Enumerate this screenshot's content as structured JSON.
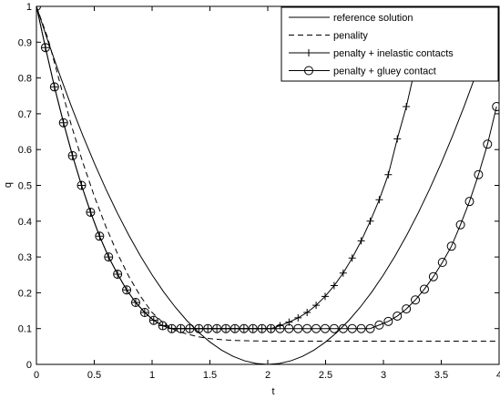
{
  "chart_data": {
    "type": "line",
    "title": "",
    "xlabel": "t",
    "ylabel": "q",
    "xlim": [
      0,
      4
    ],
    "ylim": [
      0,
      1
    ],
    "xticks": [
      0,
      0.5,
      1,
      1.5,
      2,
      2.5,
      3,
      3.5,
      4
    ],
    "xtick_labels": [
      "0",
      "0.5",
      "1",
      "1.5",
      "2",
      "2.5",
      "3",
      "3.5",
      "4"
    ],
    "yticks": [
      0,
      0.1,
      0.2,
      0.3,
      0.4,
      0.5,
      0.6,
      0.7,
      0.8,
      0.9,
      1
    ],
    "ytick_labels": [
      "0",
      "0.1",
      "0.2",
      "0.3",
      "0.4",
      "0.5",
      "0.6",
      "0.7",
      "0.8",
      "0.9",
      "1"
    ],
    "grid": false,
    "legend_position": "top-right",
    "series": [
      {
        "name": "reference solution",
        "style": "solid",
        "marker": "none",
        "x": [
          0,
          0.1,
          0.2,
          0.3,
          0.4,
          0.5,
          0.6,
          0.7,
          0.8,
          0.9,
          1.0,
          1.1,
          1.2,
          1.3,
          1.4,
          1.5,
          1.6,
          1.7,
          1.8,
          1.9,
          2.0,
          2.1,
          2.2,
          2.3,
          2.4,
          2.5,
          2.6,
          2.7,
          2.8,
          2.9,
          3.0,
          3.1,
          3.2,
          3.3,
          3.4,
          3.5,
          3.6,
          3.7,
          3.8,
          3.9,
          4.0
        ],
        "y": [
          1.0,
          0.9025,
          0.81,
          0.7225,
          0.64,
          0.5625,
          0.49,
          0.4225,
          0.36,
          0.3025,
          0.25,
          0.2025,
          0.16,
          0.1225,
          0.09,
          0.0625,
          0.04,
          0.0225,
          0.01,
          0.0025,
          0.0,
          0.0025,
          0.01,
          0.0225,
          0.04,
          0.0625,
          0.09,
          0.1225,
          0.16,
          0.2025,
          0.25,
          0.3025,
          0.36,
          0.4225,
          0.49,
          0.5625,
          0.64,
          0.7225,
          0.81,
          0.9025,
          1.0
        ]
      },
      {
        "name": "penality",
        "style": "dashed",
        "marker": "none",
        "x": [
          0,
          0.1,
          0.2,
          0.3,
          0.4,
          0.5,
          0.6,
          0.7,
          0.8,
          0.9,
          1.0,
          1.1,
          1.2,
          1.3,
          1.4,
          1.5,
          1.6,
          1.7,
          1.8,
          2.0,
          2.5,
          3.0,
          3.5,
          4.0
        ],
        "y": [
          1.0,
          0.91,
          0.79,
          0.67,
          0.565,
          0.47,
          0.385,
          0.31,
          0.245,
          0.19,
          0.145,
          0.115,
          0.095,
          0.085,
          0.077,
          0.072,
          0.069,
          0.067,
          0.066,
          0.065,
          0.065,
          0.065,
          0.065,
          0.065
        ]
      },
      {
        "name": "penalty + inelastic contacts",
        "style": "solid",
        "marker": "plus",
        "x": [
          0,
          0.078,
          0.156,
          0.234,
          0.312,
          0.39,
          0.468,
          0.546,
          0.624,
          0.702,
          0.78,
          0.858,
          0.936,
          1.014,
          1.092,
          1.17,
          1.248,
          1.326,
          1.404,
          1.482,
          1.56,
          1.638,
          1.716,
          1.794,
          1.872,
          1.95,
          2.028,
          2.106,
          2.184,
          2.262,
          2.34,
          2.418,
          2.496,
          2.574,
          2.652,
          2.73,
          2.808,
          2.886,
          2.964,
          3.042,
          3.12,
          3.198,
          3.276
        ],
        "y": [
          1.0,
          0.885,
          0.775,
          0.675,
          0.583,
          0.5,
          0.425,
          0.358,
          0.3,
          0.252,
          0.208,
          0.173,
          0.145,
          0.123,
          0.108,
          0.1,
          0.1,
          0.1,
          0.1,
          0.1,
          0.1,
          0.1,
          0.1,
          0.1,
          0.1,
          0.1,
          0.1,
          0.108,
          0.118,
          0.13,
          0.145,
          0.165,
          0.19,
          0.22,
          0.255,
          0.297,
          0.345,
          0.4,
          0.46,
          0.53,
          0.63,
          0.72,
          0.83
        ]
      },
      {
        "name": "penalty + gluey contact",
        "style": "solid",
        "marker": "circle",
        "x": [
          0,
          0.078,
          0.156,
          0.234,
          0.312,
          0.39,
          0.468,
          0.546,
          0.624,
          0.702,
          0.78,
          0.858,
          0.936,
          1.014,
          1.092,
          1.17,
          1.248,
          1.326,
          1.404,
          1.482,
          1.56,
          1.638,
          1.716,
          1.794,
          1.872,
          1.95,
          2.028,
          2.106,
          2.184,
          2.262,
          2.34,
          2.418,
          2.496,
          2.574,
          2.652,
          2.73,
          2.808,
          2.886,
          2.964,
          3.042,
          3.12,
          3.198,
          3.276,
          3.354,
          3.432,
          3.51,
          3.588,
          3.666,
          3.744,
          3.822,
          3.9,
          3.978
        ],
        "y": [
          1.0,
          0.885,
          0.775,
          0.675,
          0.583,
          0.5,
          0.425,
          0.358,
          0.3,
          0.252,
          0.208,
          0.173,
          0.145,
          0.123,
          0.108,
          0.1,
          0.1,
          0.1,
          0.1,
          0.1,
          0.1,
          0.1,
          0.1,
          0.1,
          0.1,
          0.1,
          0.1,
          0.1,
          0.1,
          0.1,
          0.1,
          0.1,
          0.1,
          0.1,
          0.1,
          0.1,
          0.1,
          0.1,
          0.11,
          0.12,
          0.135,
          0.155,
          0.18,
          0.21,
          0.245,
          0.285,
          0.33,
          0.39,
          0.455,
          0.53,
          0.615,
          0.72
        ]
      }
    ]
  }
}
